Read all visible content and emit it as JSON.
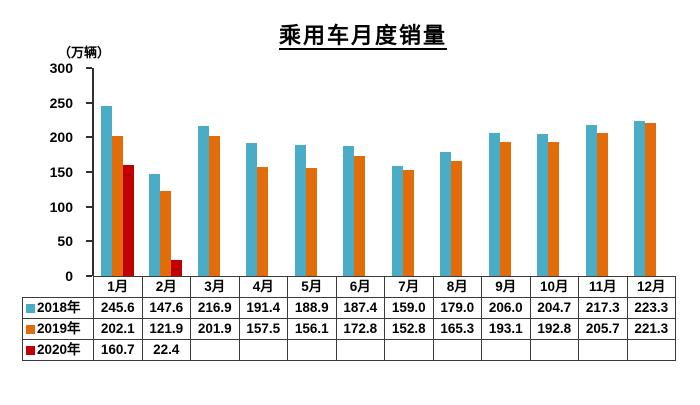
{
  "title": "乘用车月度销量",
  "unit_label": "（万辆）",
  "chart_data": {
    "type": "bar",
    "title": "乘用车月度销量",
    "ylabel": "（万辆）",
    "categories": [
      "1月",
      "2月",
      "3月",
      "4月",
      "5月",
      "6月",
      "7月",
      "8月",
      "9月",
      "10月",
      "11月",
      "12月"
    ],
    "series": [
      {
        "name": "2018年",
        "color": "#4BACC6",
        "values": [
          245.6,
          147.6,
          216.9,
          191.4,
          188.9,
          187.4,
          159.0,
          179.0,
          206.0,
          204.7,
          217.3,
          223.3
        ]
      },
      {
        "name": "2019年",
        "color": "#E36C0A",
        "values": [
          202.1,
          121.9,
          201.9,
          157.5,
          156.1,
          172.8,
          152.8,
          165.3,
          193.1,
          192.8,
          205.7,
          221.3
        ]
      },
      {
        "name": "2020年",
        "color": "#C00000",
        "values": [
          160.7,
          22.4,
          null,
          null,
          null,
          null,
          null,
          null,
          null,
          null,
          null,
          null
        ]
      }
    ],
    "ylim": [
      0,
      300
    ],
    "y_ticks": [
      0,
      50,
      100,
      150,
      200,
      250,
      300
    ],
    "grid": false,
    "legend_position": "data-table-left",
    "data_table": true
  }
}
